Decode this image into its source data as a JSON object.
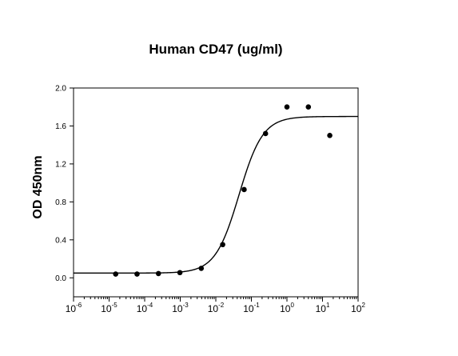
{
  "chart_data": {
    "type": "scatter",
    "title": "Human CD47 (ug/ml)",
    "xlabel": "",
    "ylabel": "OD 450nm",
    "xscale": "log",
    "xlim": [
      1e-06,
      100
    ],
    "ylim": [
      -0.2,
      2.0
    ],
    "grid": false,
    "legend": "none",
    "x_ticks": [
      {
        "base": "10",
        "exp": "-6",
        "value": 1e-06
      },
      {
        "base": "10",
        "exp": "-5",
        "value": 1e-05
      },
      {
        "base": "10",
        "exp": "-4",
        "value": 0.0001
      },
      {
        "base": "10",
        "exp": "-3",
        "value": 0.001
      },
      {
        "base": "10",
        "exp": "-2",
        "value": 0.01
      },
      {
        "base": "10",
        "exp": "-1",
        "value": 0.1
      },
      {
        "base": "10",
        "exp": "0",
        "value": 1
      },
      {
        "base": "10",
        "exp": "1",
        "value": 10
      },
      {
        "base": "10",
        "exp": "2",
        "value": 100
      }
    ],
    "y_ticks": [
      {
        "label": "0.0",
        "value": 0.0
      },
      {
        "label": "0.4",
        "value": 0.4
      },
      {
        "label": "0.8",
        "value": 0.8
      },
      {
        "label": "1.2",
        "value": 1.2
      },
      {
        "label": "1.6",
        "value": 1.6
      },
      {
        "label": "2.0",
        "value": 2.0
      }
    ],
    "points": {
      "x": [
        1.53e-05,
        6.1e-05,
        0.000244,
        0.000977,
        0.0039,
        0.0156,
        0.0625,
        0.25,
        1.0,
        4.0,
        16.0
      ],
      "y": [
        0.04,
        0.04,
        0.045,
        0.055,
        0.1,
        0.35,
        0.93,
        1.52,
        1.8,
        1.8,
        1.5
      ]
    },
    "fit_curve": {
      "model": "4PL",
      "bottom": 0.05,
      "top": 1.7,
      "ec50": 0.045,
      "hill": 1.3
    },
    "colors": {
      "points": "#000000",
      "curve": "#000000",
      "axes": "#000000"
    }
  }
}
